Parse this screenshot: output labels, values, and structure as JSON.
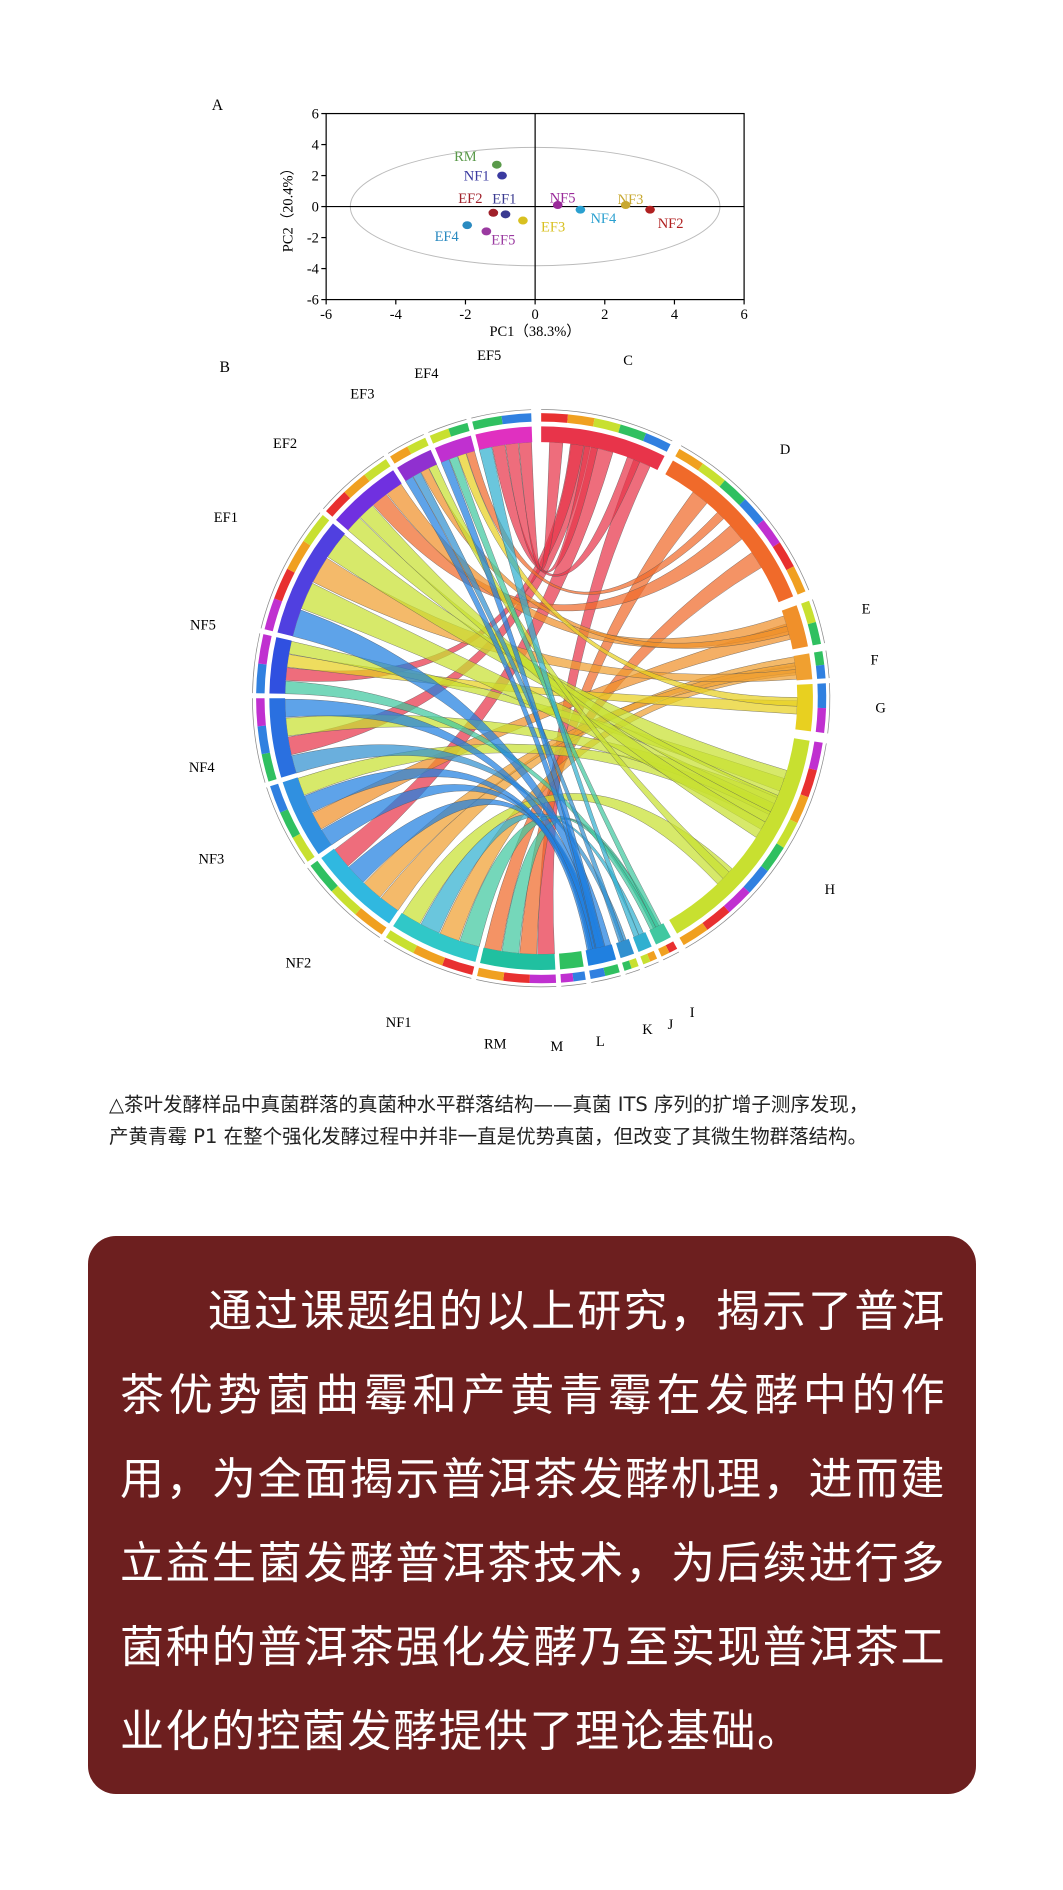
{
  "chart_data": {
    "type": "scatter",
    "panel_label": "A",
    "x_label": "PC1（38.3%）",
    "y_label": "PC2（20.4%）",
    "xlim": [
      -6,
      6
    ],
    "ylim": [
      -6,
      6
    ],
    "xticks": [
      -6,
      -4,
      -2,
      0,
      2,
      4,
      6
    ],
    "yticks": [
      -6,
      -4,
      -2,
      0,
      2,
      4,
      6
    ],
    "labels": [
      "RM",
      "NF1",
      "EF2",
      "EF1",
      "EF4",
      "EF5",
      "EF3",
      "NF5",
      "NF4",
      "NF3",
      "NF2"
    ],
    "x": [
      -1.1,
      -0.95,
      -1.2,
      -0.85,
      -1.95,
      -1.4,
      -0.35,
      0.65,
      1.3,
      2.6,
      3.3
    ],
    "y": [
      2.7,
      2.0,
      -0.4,
      -0.5,
      -1.2,
      -1.6,
      -0.9,
      0.1,
      -0.2,
      0.1,
      -0.2
    ],
    "colors": [
      "#5a9a4a",
      "#3a3aa0",
      "#a0202a",
      "#3a3a90",
      "#2a8ac0",
      "#9a3aa0",
      "#d8c020",
      "#9a2a9a",
      "#2aa0d0",
      "#c8a830",
      "#b02020"
    ]
  },
  "panel_b": {
    "panel_label": "B",
    "segments": [
      "C",
      "D",
      "E",
      "F",
      "G",
      "H",
      "I",
      "J",
      "K",
      "L",
      "M",
      "RM",
      "NF1",
      "NF2",
      "NF3",
      "NF4",
      "NF5",
      "EF1",
      "EF2",
      "EF3",
      "EF4",
      "EF5"
    ]
  },
  "caption": [
    "△茶叶发酵样品中真菌群落的真菌种水平群落结构——真菌 ITS 序列的扩增子测序发现，",
    "产黄青霉 P1 在整个强化发酵过程中并非一直是优势真菌，但改变了其微生物群落结构。"
  ],
  "body": "通过课题组的以上研究，揭示了普洱茶优势菌曲霉和产黄青霉在发酵中的作用，为全面揭示普洱茶发酵机理，进而建立益生菌发酵普洱茶技术，为后续进行多菌种的普洱茶强化发酵乃至实现普洱茶工业化的控菌发酵提供了理论基础。"
}
